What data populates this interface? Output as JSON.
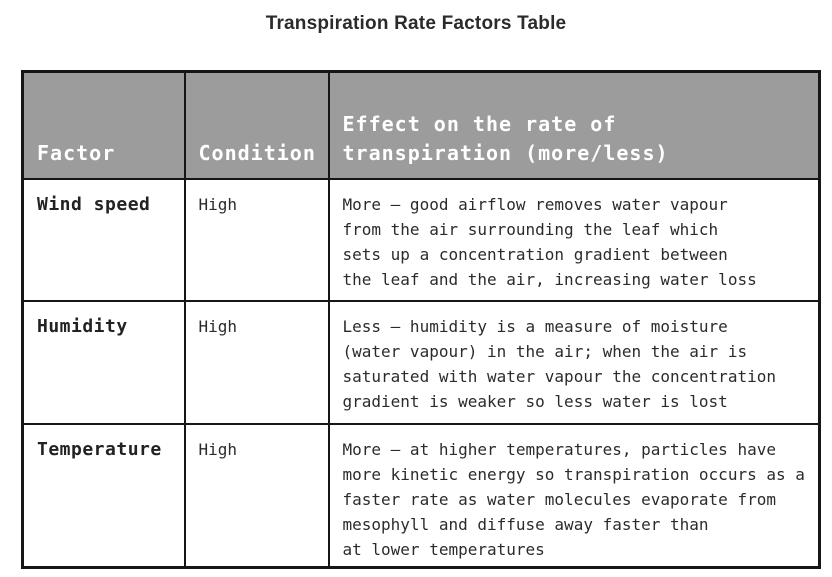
{
  "title": "Transpiration Rate Factors Table",
  "colors": {
    "header_bg": "#9c9c9c",
    "header_text": "#ffffff",
    "border": "#161616",
    "body_text": "#2b2b2b"
  },
  "table": {
    "headers": [
      "Factor",
      "Condition",
      "Effect on the rate of\ntranspiration (more/less)"
    ],
    "rows": [
      {
        "factor": "Wind speed",
        "condition": "High",
        "effect": "More – good airflow removes water vapour\nfrom the air surrounding the leaf which\nsets up a concentration gradient between\nthe leaf and the air, increasing water loss"
      },
      {
        "factor": "Humidity",
        "condition": "High",
        "effect": "Less – humidity is a measure of moisture\n(water vapour) in the air; when the air is\nsaturated with water vapour the concentration\ngradient is weaker so less water is lost"
      },
      {
        "factor": "Temperature",
        "condition": "High",
        "effect": "More – at higher temperatures, particles have\nmore kinetic energy so transpiration occurs as a\nfaster rate as water molecules evaporate from\nmesophyll and diffuse away faster than\nat lower temperatures"
      }
    ]
  }
}
